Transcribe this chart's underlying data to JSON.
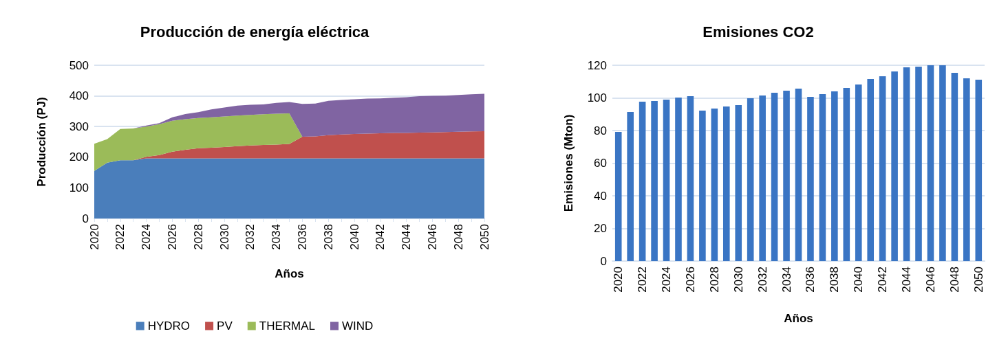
{
  "chart_data": [
    {
      "type": "area",
      "title": "Producción de energía eléctrica",
      "xlabel": "Años",
      "ylabel": "Producción (PJ)",
      "stacked": true,
      "grid": "y",
      "legend": "bottom",
      "x": [
        2020,
        2021,
        2022,
        2023,
        2024,
        2025,
        2026,
        2027,
        2028,
        2029,
        2030,
        2031,
        2032,
        2033,
        2034,
        2035,
        2036,
        2037,
        2038,
        2039,
        2040,
        2041,
        2042,
        2043,
        2044,
        2045,
        2046,
        2047,
        2048,
        2049,
        2050
      ],
      "xlim": [
        2020,
        2050
      ],
      "xticks": [
        2020,
        2022,
        2024,
        2026,
        2028,
        2030,
        2032,
        2034,
        2036,
        2038,
        2040,
        2042,
        2044,
        2046,
        2048,
        2050
      ],
      "ylim": [
        0,
        500
      ],
      "yticks": [
        0,
        100,
        200,
        300,
        400,
        500
      ],
      "series": [
        {
          "name": "HYDRO",
          "color": "#4a7ebb",
          "values": [
            155,
            182,
            190,
            190,
            196,
            196,
            196,
            196,
            196,
            196,
            196,
            196,
            196,
            196,
            196,
            196,
            196,
            196,
            196,
            196,
            196,
            196,
            196,
            196,
            196,
            196,
            196,
            196,
            196,
            196,
            196
          ]
        },
        {
          "name": "PV",
          "color": "#c0504d",
          "values": [
            0,
            0,
            0,
            0,
            5,
            11,
            22,
            28,
            33,
            35,
            37,
            40,
            42,
            44,
            45,
            47,
            71,
            72,
            76,
            78,
            80,
            81,
            82,
            83,
            83,
            84,
            85,
            86,
            87,
            88,
            89
          ]
        },
        {
          "name": "THERMAL",
          "color": "#9bbb59",
          "values": [
            89,
            77,
            102,
            104,
            99,
            101,
            101,
            100,
            99,
            99,
            100,
            100,
            100,
            100,
            101,
            100,
            0,
            0,
            0,
            0,
            0,
            0,
            0,
            0,
            0,
            0,
            0,
            0,
            0,
            0,
            0
          ]
        },
        {
          "name": "WIND",
          "color": "#8064a2",
          "values": [
            0,
            0,
            0,
            0,
            3,
            3,
            11,
            17,
            19,
            26,
            29,
            32,
            33,
            32,
            35,
            37,
            107,
            107,
            112,
            113,
            113,
            114,
            114,
            115,
            117,
            119,
            119,
            119,
            120,
            121,
            122
          ]
        }
      ]
    },
    {
      "type": "bar",
      "title": "Emisiones CO2",
      "xlabel": "Años",
      "ylabel": "Emisiones (Mton)",
      "grid": "y",
      "color": "#3a75c4",
      "categories": [
        "2020",
        null,
        "2022",
        null,
        "2024",
        null,
        "2026",
        null,
        "2028",
        null,
        "2030",
        null,
        "2032",
        null,
        "2034",
        null,
        "2036",
        null,
        "2038",
        null,
        "2040",
        null,
        "2042",
        null,
        "2044",
        null,
        "2046",
        null,
        "2048",
        null,
        "2050"
      ],
      "values": [
        79.2,
        91.4,
        97.7,
        98.1,
        98.9,
        100.2,
        101.1,
        92.2,
        93.5,
        94.7,
        95.6,
        99.8,
        101.5,
        103.2,
        104.4,
        105.7,
        100.6,
        102.3,
        104.0,
        106.1,
        108.2,
        111.6,
        113.3,
        116.2,
        118.7,
        119.2,
        120,
        120,
        115.4,
        112.0,
        111.2
      ],
      "ylim": [
        0,
        120
      ],
      "yticks": [
        0,
        20,
        40,
        60,
        80,
        100,
        120
      ]
    }
  ]
}
